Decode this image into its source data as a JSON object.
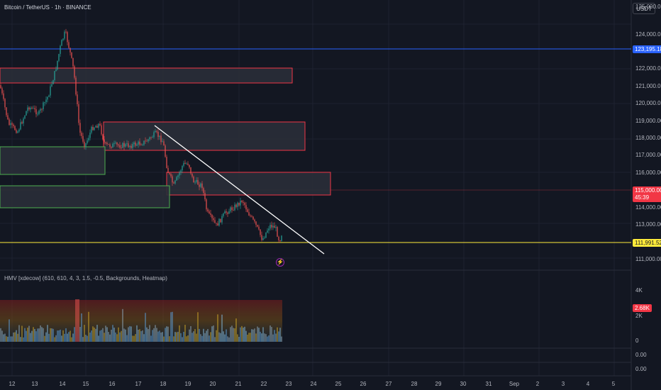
{
  "header": {
    "title": "Bitcoin / TetherUS · 1h · BINANCE",
    "currency": "USDT"
  },
  "price_axis": {
    "ticks": [
      "125,000.00",
      "124,000.00",
      "122,000.00",
      "121,000.00",
      "120,000.00",
      "119,000.00",
      "118,000.00",
      "117,000.00",
      "116,000.00",
      "114,000.00",
      "113,000.00",
      "111,000.00"
    ]
  },
  "badges": {
    "blue_level": {
      "value": "123,195.18",
      "color": "#2962ff"
    },
    "current_price": {
      "value": "115,000.00",
      "countdown": "45:39",
      "color": "#f23645"
    },
    "yellow_level": {
      "value": "111,991.52",
      "color": "#ffeb3b"
    },
    "volume_current": {
      "value": "2.68K",
      "color": "#f23645"
    }
  },
  "indicator": {
    "label": "HMV [xdecow] (610, 610, 4, 3, 1.5, -0.5, Backgrounds, Heatmap)",
    "ticks": [
      "4K",
      "2K",
      "0"
    ]
  },
  "sub_panes": {
    "pane1_value": "0.00",
    "pane2_value": "0.00"
  },
  "time_axis": {
    "labels": [
      "12",
      "13",
      "14",
      "15",
      "16",
      "17",
      "18",
      "19",
      "20",
      "21",
      "22",
      "23",
      "24",
      "25",
      "26",
      "27",
      "28",
      "29",
      "30",
      "31",
      "Sep",
      "2",
      "3",
      "4",
      "5"
    ]
  },
  "icons": {
    "bolt": "lightning-icon"
  },
  "colors": {
    "background": "#131722",
    "zone_red": "#f23645",
    "zone_green": "#4caf50",
    "trendline": "#ffffff",
    "up_candle": "#26a69a",
    "down_candle": "#ef5350"
  }
}
